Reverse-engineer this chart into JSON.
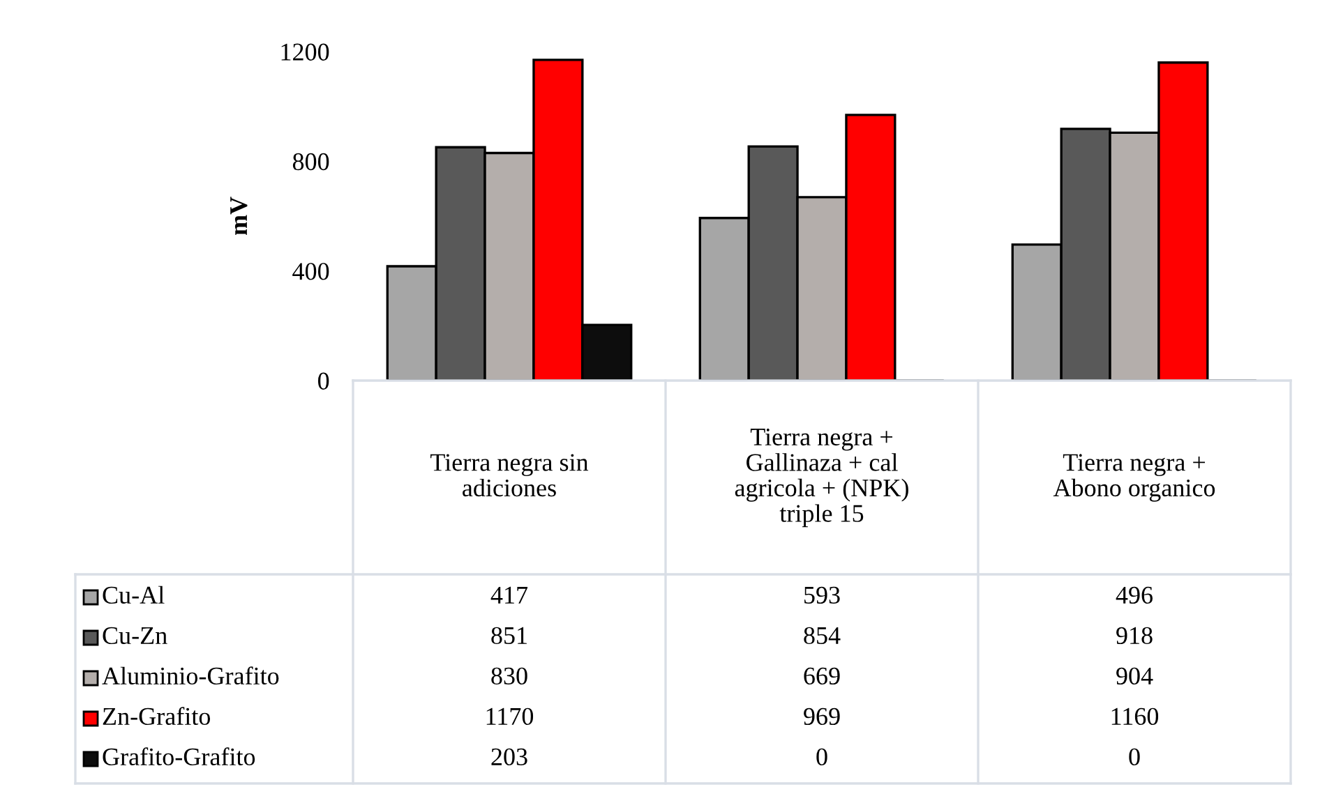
{
  "chart_data": {
    "type": "bar",
    "ylabel": "mV",
    "categories": [
      "Tierra negra sin\nadiciones",
      "Tierra negra +\nGallinaza + cal\nagricola + (NPK)\ntriple 15",
      "Tierra negra +\nAbono organico"
    ],
    "series": [
      {
        "name": "Cu-Al",
        "color": "#a6a6a6",
        "values": [
          417,
          593,
          496
        ]
      },
      {
        "name": "Cu-Zn",
        "color": "#595959",
        "values": [
          851,
          854,
          918
        ]
      },
      {
        "name": "Aluminio-Grafito",
        "color": "#b4aeab",
        "values": [
          830,
          669,
          904
        ]
      },
      {
        "name": "Zn-Grafito",
        "color": "#ff0000",
        "values": [
          1170,
          969,
          1160
        ]
      },
      {
        "name": "Grafito-Grafito",
        "color": "#0d0d0d",
        "values": [
          203,
          0,
          0
        ]
      }
    ],
    "ylim": [
      0,
      1200
    ],
    "yticks": [
      0,
      400,
      800,
      1200
    ],
    "grid": false,
    "legend": "bottom left",
    "data_labels": true
  }
}
